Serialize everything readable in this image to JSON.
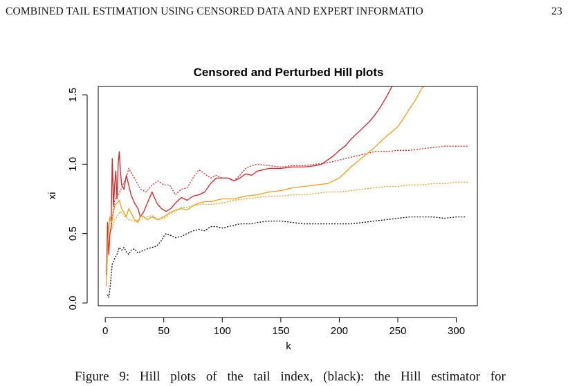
{
  "header": {
    "running_title": "COMBINED TAIL ESTIMATION USING CENSORED DATA AND EXPERT INFORMATIO",
    "page_number": "23"
  },
  "caption": {
    "text": "Figure 9: Hill plots of the tail index, (black): the Hill estimator for"
  },
  "colors": {
    "red": "#e41a1c",
    "orange": "#f39c12",
    "black": "#000000"
  },
  "chart_data": {
    "type": "line",
    "title": "Censored and Perturbed Hill plots",
    "xlabel": "k",
    "ylabel": "xi",
    "xlim": [
      -6,
      318
    ],
    "ylim": [
      -0.02,
      1.56
    ],
    "xticks": [
      0,
      50,
      100,
      150,
      200,
      250,
      300
    ],
    "yticks": [
      0.0,
      0.5,
      1.0,
      1.5
    ],
    "xtick_labels": [
      "0",
      "50",
      "100",
      "150",
      "200",
      "250",
      "300"
    ],
    "ytick_labels": [
      "0.0",
      "0.5",
      "1.0",
      "1.5"
    ],
    "grid": false,
    "legend": "none",
    "series": [
      {
        "color": "#e41a1c",
        "style": "solid",
        "points": [
          [
            1,
            0.2
          ],
          [
            2,
            0.58
          ],
          [
            3,
            0.35
          ],
          [
            4,
            0.5
          ],
          [
            5,
            0.55
          ],
          [
            6,
            1.04
          ],
          [
            7,
            0.7
          ],
          [
            8,
            0.85
          ],
          [
            9,
            0.95
          ],
          [
            10,
            0.75
          ],
          [
            11,
            1.0
          ],
          [
            12,
            1.09
          ],
          [
            13,
            0.95
          ],
          [
            14,
            0.85
          ],
          [
            16,
            0.82
          ],
          [
            18,
            0.92
          ],
          [
            20,
            0.85
          ],
          [
            22,
            0.78
          ],
          [
            25,
            0.72
          ],
          [
            28,
            0.68
          ],
          [
            30,
            0.62
          ],
          [
            33,
            0.66
          ],
          [
            36,
            0.72
          ],
          [
            40,
            0.8
          ],
          [
            44,
            0.72
          ],
          [
            48,
            0.68
          ],
          [
            52,
            0.66
          ],
          [
            56,
            0.68
          ],
          [
            60,
            0.72
          ],
          [
            65,
            0.76
          ],
          [
            70,
            0.74
          ],
          [
            75,
            0.77
          ],
          [
            80,
            0.78
          ],
          [
            85,
            0.8
          ],
          [
            90,
            0.86
          ],
          [
            95,
            0.9
          ],
          [
            100,
            0.9
          ],
          [
            105,
            0.9
          ],
          [
            110,
            0.88
          ],
          [
            115,
            0.9
          ],
          [
            120,
            0.93
          ],
          [
            125,
            0.92
          ],
          [
            130,
            0.95
          ],
          [
            140,
            0.97
          ],
          [
            150,
            0.97
          ],
          [
            160,
            0.98
          ],
          [
            170,
            0.98
          ],
          [
            180,
            0.99
          ],
          [
            185,
            1.0
          ],
          [
            190,
            1.03
          ],
          [
            195,
            1.06
          ],
          [
            200,
            1.1
          ],
          [
            205,
            1.13
          ],
          [
            210,
            1.18
          ],
          [
            215,
            1.22
          ],
          [
            220,
            1.26
          ],
          [
            225,
            1.3
          ],
          [
            230,
            1.35
          ],
          [
            235,
            1.41
          ],
          [
            240,
            1.48
          ],
          [
            245,
            1.56
          ]
        ]
      },
      {
        "color": "#e41a1c",
        "style": "dotted",
        "points": [
          [
            5,
            0.55
          ],
          [
            8,
            0.74
          ],
          [
            10,
            0.77
          ],
          [
            12,
            0.79
          ],
          [
            15,
            0.85
          ],
          [
            18,
            0.9
          ],
          [
            20,
            0.97
          ],
          [
            25,
            0.9
          ],
          [
            30,
            0.82
          ],
          [
            35,
            0.8
          ],
          [
            40,
            0.85
          ],
          [
            45,
            0.88
          ],
          [
            50,
            0.85
          ],
          [
            55,
            0.85
          ],
          [
            60,
            0.78
          ],
          [
            65,
            0.82
          ],
          [
            70,
            0.83
          ],
          [
            75,
            0.9
          ],
          [
            80,
            0.96
          ],
          [
            85,
            0.93
          ],
          [
            90,
            0.9
          ],
          [
            95,
            0.92
          ],
          [
            100,
            0.9
          ],
          [
            105,
            0.9
          ],
          [
            110,
            0.88
          ],
          [
            115,
            0.92
          ],
          [
            120,
            0.97
          ],
          [
            125,
            0.99
          ],
          [
            130,
            1.0
          ],
          [
            140,
            0.99
          ],
          [
            150,
            0.98
          ],
          [
            160,
            0.99
          ],
          [
            170,
            0.99
          ],
          [
            180,
            1.0
          ],
          [
            190,
            1.01
          ],
          [
            200,
            1.03
          ],
          [
            210,
            1.05
          ],
          [
            220,
            1.07
          ],
          [
            230,
            1.09
          ],
          [
            240,
            1.09
          ],
          [
            250,
            1.1
          ],
          [
            260,
            1.1
          ],
          [
            270,
            1.11
          ],
          [
            280,
            1.12
          ],
          [
            290,
            1.13
          ],
          [
            300,
            1.13
          ],
          [
            310,
            1.13
          ]
        ]
      },
      {
        "color": "#f39c12",
        "style": "solid",
        "points": [
          [
            1,
            0.12
          ],
          [
            2,
            0.4
          ],
          [
            3,
            0.55
          ],
          [
            4,
            0.62
          ],
          [
            5,
            0.58
          ],
          [
            6,
            0.6
          ],
          [
            8,
            0.7
          ],
          [
            10,
            0.72
          ],
          [
            12,
            0.74
          ],
          [
            14,
            0.68
          ],
          [
            16,
            0.65
          ],
          [
            18,
            0.62
          ],
          [
            20,
            0.68
          ],
          [
            22,
            0.65
          ],
          [
            25,
            0.6
          ],
          [
            28,
            0.58
          ],
          [
            30,
            0.63
          ],
          [
            33,
            0.62
          ],
          [
            36,
            0.6
          ],
          [
            40,
            0.62
          ],
          [
            45,
            0.6
          ],
          [
            50,
            0.62
          ],
          [
            55,
            0.65
          ],
          [
            60,
            0.67
          ],
          [
            65,
            0.68
          ],
          [
            70,
            0.67
          ],
          [
            75,
            0.7
          ],
          [
            80,
            0.72
          ],
          [
            85,
            0.73
          ],
          [
            90,
            0.73
          ],
          [
            95,
            0.74
          ],
          [
            100,
            0.75
          ],
          [
            105,
            0.75
          ],
          [
            110,
            0.75
          ],
          [
            115,
            0.76
          ],
          [
            120,
            0.77
          ],
          [
            130,
            0.78
          ],
          [
            140,
            0.8
          ],
          [
            150,
            0.81
          ],
          [
            160,
            0.83
          ],
          [
            170,
            0.84
          ],
          [
            180,
            0.85
          ],
          [
            190,
            0.86
          ],
          [
            200,
            0.9
          ],
          [
            205,
            0.94
          ],
          [
            210,
            0.98
          ],
          [
            220,
            1.05
          ],
          [
            230,
            1.12
          ],
          [
            240,
            1.2
          ],
          [
            250,
            1.27
          ],
          [
            255,
            1.33
          ],
          [
            260,
            1.4
          ],
          [
            265,
            1.46
          ],
          [
            270,
            1.54
          ],
          [
            272,
            1.56
          ]
        ]
      },
      {
        "color": "#f39c12",
        "style": "dotted",
        "points": [
          [
            5,
            0.52
          ],
          [
            8,
            0.6
          ],
          [
            10,
            0.62
          ],
          [
            13,
            0.66
          ],
          [
            16,
            0.63
          ],
          [
            20,
            0.6
          ],
          [
            25,
            0.59
          ],
          [
            30,
            0.6
          ],
          [
            35,
            0.62
          ],
          [
            40,
            0.63
          ],
          [
            45,
            0.6
          ],
          [
            50,
            0.61
          ],
          [
            55,
            0.64
          ],
          [
            60,
            0.66
          ],
          [
            65,
            0.69
          ],
          [
            70,
            0.69
          ],
          [
            75,
            0.7
          ],
          [
            80,
            0.71
          ],
          [
            90,
            0.71
          ],
          [
            100,
            0.72
          ],
          [
            110,
            0.74
          ],
          [
            120,
            0.75
          ],
          [
            130,
            0.76
          ],
          [
            140,
            0.77
          ],
          [
            150,
            0.77
          ],
          [
            160,
            0.78
          ],
          [
            170,
            0.78
          ],
          [
            180,
            0.79
          ],
          [
            190,
            0.8
          ],
          [
            200,
            0.8
          ],
          [
            210,
            0.81
          ],
          [
            220,
            0.82
          ],
          [
            230,
            0.83
          ],
          [
            240,
            0.84
          ],
          [
            250,
            0.84
          ],
          [
            260,
            0.85
          ],
          [
            270,
            0.85
          ],
          [
            280,
            0.86
          ],
          [
            290,
            0.86
          ],
          [
            300,
            0.87
          ],
          [
            310,
            0.87
          ]
        ]
      },
      {
        "color": "#000000",
        "style": "dotted",
        "points": [
          [
            2,
            0.06
          ],
          [
            3,
            0.04
          ],
          [
            4,
            0.1
          ],
          [
            6,
            0.28
          ],
          [
            8,
            0.32
          ],
          [
            10,
            0.35
          ],
          [
            12,
            0.4
          ],
          [
            14,
            0.38
          ],
          [
            16,
            0.4
          ],
          [
            18,
            0.37
          ],
          [
            20,
            0.35
          ],
          [
            22,
            0.38
          ],
          [
            25,
            0.39
          ],
          [
            28,
            0.36
          ],
          [
            30,
            0.37
          ],
          [
            33,
            0.38
          ],
          [
            36,
            0.39
          ],
          [
            40,
            0.4
          ],
          [
            44,
            0.41
          ],
          [
            48,
            0.45
          ],
          [
            50,
            0.48
          ],
          [
            52,
            0.5
          ],
          [
            55,
            0.49
          ],
          [
            60,
            0.47
          ],
          [
            65,
            0.48
          ],
          [
            70,
            0.5
          ],
          [
            75,
            0.52
          ],
          [
            80,
            0.53
          ],
          [
            85,
            0.52
          ],
          [
            90,
            0.55
          ],
          [
            95,
            0.55
          ],
          [
            100,
            0.54
          ],
          [
            105,
            0.55
          ],
          [
            110,
            0.56
          ],
          [
            115,
            0.57
          ],
          [
            120,
            0.57
          ],
          [
            125,
            0.57
          ],
          [
            130,
            0.58
          ],
          [
            140,
            0.59
          ],
          [
            150,
            0.59
          ],
          [
            160,
            0.58
          ],
          [
            170,
            0.57
          ],
          [
            180,
            0.57
          ],
          [
            190,
            0.57
          ],
          [
            200,
            0.57
          ],
          [
            210,
            0.57
          ],
          [
            220,
            0.58
          ],
          [
            230,
            0.59
          ],
          [
            240,
            0.6
          ],
          [
            250,
            0.61
          ],
          [
            260,
            0.62
          ],
          [
            270,
            0.62
          ],
          [
            280,
            0.62
          ],
          [
            290,
            0.61
          ],
          [
            300,
            0.62
          ],
          [
            308,
            0.62
          ]
        ]
      }
    ]
  }
}
